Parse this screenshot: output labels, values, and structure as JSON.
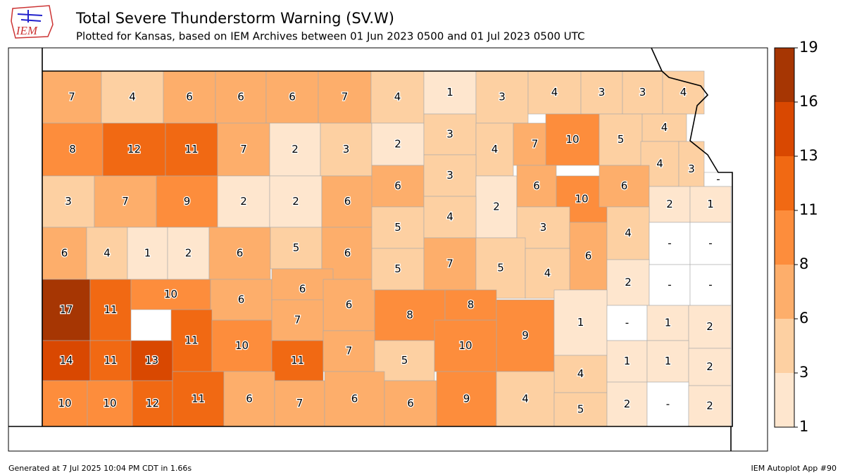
{
  "header": {
    "logo": "IEM",
    "title": "Total Severe Thunderstorm Warning (SV.W)",
    "subtitle": "Plotted for Kansas, based on IEM Archives  between 01 Jun 2023 0500 and 01 Jul 2023 0500 UTC"
  },
  "colorbar": {
    "ticks": [
      1,
      3,
      6,
      8,
      11,
      13,
      16,
      19
    ],
    "colors": [
      "#fee6ce",
      "#fdd0a2",
      "#fdae6b",
      "#fd8d3c",
      "#f16913",
      "#d94801",
      "#a63603"
    ]
  },
  "counties": {
    "missing_label": "-",
    "missing_color": "#ffffff",
    "values": [
      7,
      4,
      6,
      6,
      6,
      7,
      4,
      1,
      3,
      4,
      3,
      3,
      4,
      8,
      12,
      11,
      7,
      2,
      3,
      2,
      3,
      4,
      7,
      10,
      5,
      4,
      4,
      3,
      null,
      3,
      7,
      9,
      2,
      2,
      6,
      6,
      3,
      2,
      6,
      10,
      6,
      2,
      1,
      6,
      4,
      1,
      2,
      6,
      5,
      6,
      5,
      4,
      3,
      6,
      4,
      null,
      null,
      17,
      11,
      10,
      6,
      6,
      6,
      5,
      7,
      5,
      4,
      2,
      null,
      null,
      7,
      11,
      10,
      8,
      8,
      9,
      1,
      null,
      1,
      2,
      14,
      11,
      13,
      11,
      7,
      5,
      10,
      4,
      1,
      1,
      2,
      10,
      10,
      12,
      11,
      6,
      7,
      6,
      6,
      9,
      4,
      5,
      2,
      null,
      2
    ]
  },
  "footer": {
    "left": "Generated at 7 Jul 2025 10:04 PM CDT in 1.66s",
    "right": "IEM Autoplot App #90"
  }
}
